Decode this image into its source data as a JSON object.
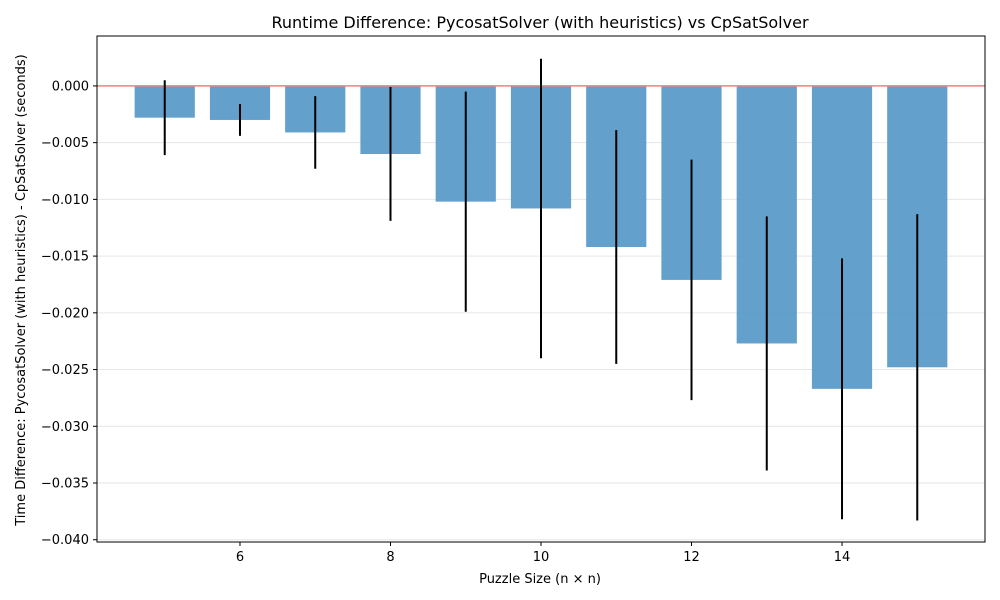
{
  "chart_data": {
    "type": "bar",
    "title": "Runtime Difference: PycosatSolver (with heuristics) vs CpSatSolver",
    "xlabel": "Puzzle Size (n × n)",
    "ylabel": "Time Difference: PycosatSolver (with heuristics) - CpSatSolver (seconds)",
    "x": [
      5,
      6,
      7,
      8,
      9,
      10,
      11,
      12,
      13,
      14,
      15
    ],
    "values": [
      -0.0028,
      -0.003,
      -0.0041,
      -0.006,
      -0.0102,
      -0.0108,
      -0.0142,
      -0.0171,
      -0.0227,
      -0.0267,
      -0.0248
    ],
    "error": [
      0.0033,
      0.0014,
      0.0032,
      0.0059,
      0.0097,
      0.0132,
      0.0103,
      0.0106,
      0.0112,
      0.0115,
      0.0135
    ],
    "xticks": [
      6,
      8,
      10,
      12,
      14
    ],
    "xticklabels": [
      "6",
      "8",
      "10",
      "12",
      "14"
    ],
    "yticks": [
      0.0,
      -0.005,
      -0.01,
      -0.015,
      -0.02,
      -0.025,
      -0.03,
      -0.035,
      -0.04
    ],
    "yticklabels": [
      "0.000",
      "−0.005",
      "−0.010",
      "−0.015",
      "−0.020",
      "−0.025",
      "−0.030",
      "−0.035",
      "−0.040"
    ],
    "xlim": [
      4.1,
      15.9
    ],
    "ylim": [
      -0.0402,
      0.0044
    ],
    "reference_line": 0,
    "grid": "horizontal",
    "colors": {
      "bar": "#5b9bc9",
      "error": "#000000",
      "reference": "#f08080",
      "grid": "#e6e6e6"
    }
  }
}
